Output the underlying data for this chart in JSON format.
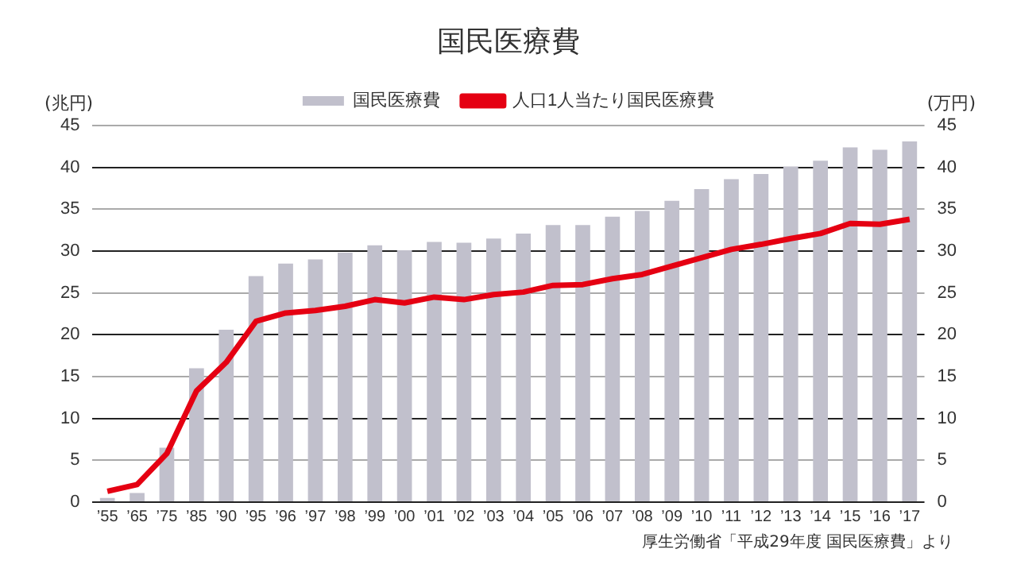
{
  "chart_data": {
    "type": "bar",
    "title": "国民医療費",
    "categories": [
      "’55",
      "’65",
      "’75",
      "’85",
      "’90",
      "’95",
      "’96",
      "’97",
      "’98",
      "’99",
      "’00",
      "’01",
      "’02",
      "’03",
      "’04",
      "’05",
      "’06",
      "’07",
      "’08",
      "’09",
      "’10",
      "’11",
      "’12",
      "’13",
      "’14",
      "’15",
      "’16",
      "’17"
    ],
    "series": [
      {
        "name": "国民医療費",
        "color": "#c1c0cc",
        "values": [
          0.5,
          1.1,
          6.5,
          16.0,
          20.6,
          27.0,
          28.5,
          29.0,
          29.8,
          30.7,
          30.1,
          31.1,
          31.0,
          31.5,
          32.1,
          33.1,
          33.1,
          34.1,
          34.8,
          36.0,
          37.4,
          38.6,
          39.2,
          40.1,
          40.8,
          42.4,
          42.1,
          43.1
        ]
      },
      {
        "name": "人口1人当たり国民医療費",
        "type": "line",
        "axis": "y2",
        "color": "#e50012",
        "values": [
          1.3,
          2.1,
          5.8,
          13.3,
          16.7,
          21.6,
          22.6,
          22.9,
          23.4,
          24.2,
          23.8,
          24.5,
          24.2,
          24.8,
          25.1,
          25.9,
          26.0,
          26.7,
          27.2,
          28.2,
          29.2,
          30.2,
          30.8,
          31.5,
          32.1,
          33.3,
          33.2,
          33.8
        ]
      }
    ],
    "ylabel": "(兆円)",
    "y2label": "(万円)",
    "ylim": [
      0,
      45
    ],
    "yticks": [
      0,
      5,
      10,
      15,
      20,
      25,
      30,
      35,
      40,
      45
    ],
    "y2lim": [
      0,
      45
    ],
    "y2ticks": [
      0,
      5,
      10,
      15,
      20,
      25,
      30,
      35,
      40,
      45
    ],
    "grid": "y",
    "legend": "top",
    "marker": "none",
    "annotations": [
      "厚生労働省「平成29年度 国民医療費」より"
    ]
  }
}
